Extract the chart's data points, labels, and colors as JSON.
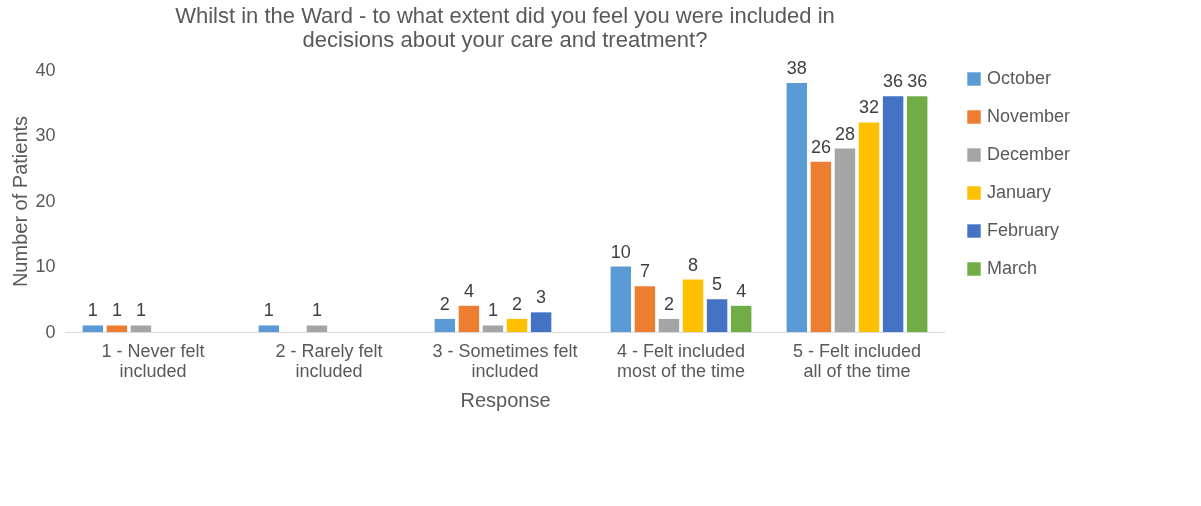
{
  "chart_data": {
    "type": "bar",
    "title": "Whilst in the Ward - to what extent did you feel you were included in decisions about your care and treatment?",
    "xlabel": "Response",
    "ylabel": "Number of Patients",
    "categories": [
      "1 - Never felt included",
      "2 - Rarely felt included",
      "3 - Sometimes felt included",
      "4 - Felt included most of the time",
      "5 - Felt included all of the time"
    ],
    "series": [
      {
        "name": "October",
        "color": "#5b9bd5",
        "values": [
          1,
          1,
          2,
          10,
          38
        ]
      },
      {
        "name": "November",
        "color": "#ed7d31",
        "values": [
          1,
          null,
          4,
          7,
          26
        ]
      },
      {
        "name": "December",
        "color": "#a5a5a5",
        "values": [
          1,
          1,
          1,
          2,
          28
        ]
      },
      {
        "name": "January",
        "color": "#ffc000",
        "values": [
          null,
          null,
          2,
          8,
          32
        ]
      },
      {
        "name": "February",
        "color": "#4472c4",
        "values": [
          null,
          null,
          3,
          5,
          36
        ]
      },
      {
        "name": "March",
        "color": "#70ad47",
        "values": [
          null,
          null,
          null,
          4,
          36
        ]
      }
    ],
    "ylim": [
      0,
      40
    ],
    "yticks": [
      0,
      10,
      20,
      30,
      40
    ],
    "grid": false,
    "legend": "right",
    "data_labels": true
  }
}
